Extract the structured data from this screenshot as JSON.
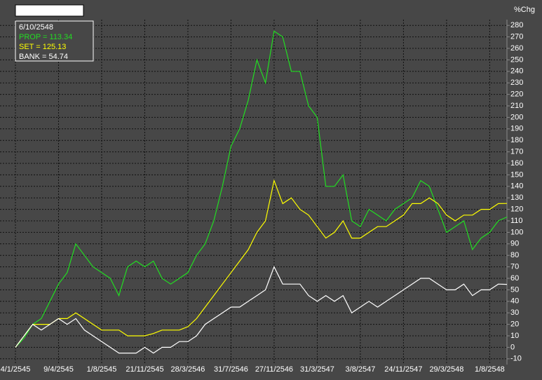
{
  "chart_data": {
    "type": "line",
    "y_label": "%Chg",
    "legend_title": "6/10/2548",
    "categories": [
      "4/1/2545",
      null,
      null,
      null,
      null,
      "9/4/2545",
      null,
      null,
      null,
      null,
      "1/8/2545",
      null,
      null,
      null,
      null,
      "21/11/2545",
      null,
      null,
      null,
      null,
      "28/3/2546",
      null,
      null,
      null,
      null,
      "31/7/2546",
      null,
      null,
      null,
      null,
      "27/11/2546",
      null,
      null,
      null,
      null,
      "31/3/2547",
      null,
      null,
      null,
      null,
      "3/8/2547",
      null,
      null,
      null,
      null,
      "24/11/2547",
      null,
      null,
      null,
      null,
      "29/3/2548",
      null,
      null,
      null,
      null,
      "1/8/2548",
      null,
      null
    ],
    "series": [
      {
        "name": "PROP = 113.34",
        "color": "#22dd22",
        "values": [
          0,
          8,
          20,
          25,
          40,
          55,
          65,
          90,
          80,
          70,
          65,
          60,
          45,
          70,
          75,
          70,
          75,
          60,
          55,
          60,
          65,
          80,
          90,
          110,
          140,
          175,
          190,
          215,
          250,
          230,
          275,
          270,
          240,
          240,
          210,
          200,
          140,
          140,
          150,
          110,
          105,
          120,
          115,
          110,
          120,
          125,
          130,
          145,
          140,
          120,
          100,
          105,
          110,
          85,
          95,
          100,
          110,
          113.34
        ]
      },
      {
        "name": "SET = 125.13",
        "color": "#ffff00",
        "values": [
          0,
          10,
          20,
          20,
          20,
          25,
          25,
          30,
          25,
          20,
          15,
          15,
          15,
          10,
          10,
          10,
          12,
          15,
          15,
          15,
          18,
          25,
          35,
          45,
          55,
          65,
          75,
          85,
          100,
          110,
          145,
          125,
          130,
          120,
          115,
          105,
          95,
          100,
          110,
          95,
          95,
          100,
          105,
          105,
          110,
          115,
          125,
          125,
          130,
          125,
          115,
          110,
          115,
          115,
          120,
          120,
          125,
          125.13
        ]
      },
      {
        "name": "BANK = 54.74",
        "color": "#ffffff",
        "values": [
          0,
          10,
          20,
          15,
          20,
          25,
          20,
          25,
          15,
          10,
          5,
          0,
          -5,
          -5,
          -5,
          0,
          -5,
          0,
          0,
          5,
          5,
          10,
          20,
          25,
          30,
          35,
          35,
          40,
          45,
          50,
          70,
          55,
          55,
          55,
          45,
          40,
          45,
          40,
          45,
          30,
          35,
          40,
          35,
          40,
          45,
          50,
          55,
          60,
          60,
          55,
          50,
          50,
          55,
          45,
          50,
          50,
          55,
          54.74
        ]
      }
    ],
    "ylim": [
      -15,
      285
    ],
    "yticks": [
      -10,
      0,
      10,
      20,
      30,
      40,
      50,
      60,
      70,
      80,
      90,
      100,
      110,
      120,
      130,
      140,
      150,
      160,
      170,
      180,
      190,
      200,
      210,
      220,
      230,
      240,
      250,
      260,
      270,
      280
    ],
    "grid": true
  }
}
